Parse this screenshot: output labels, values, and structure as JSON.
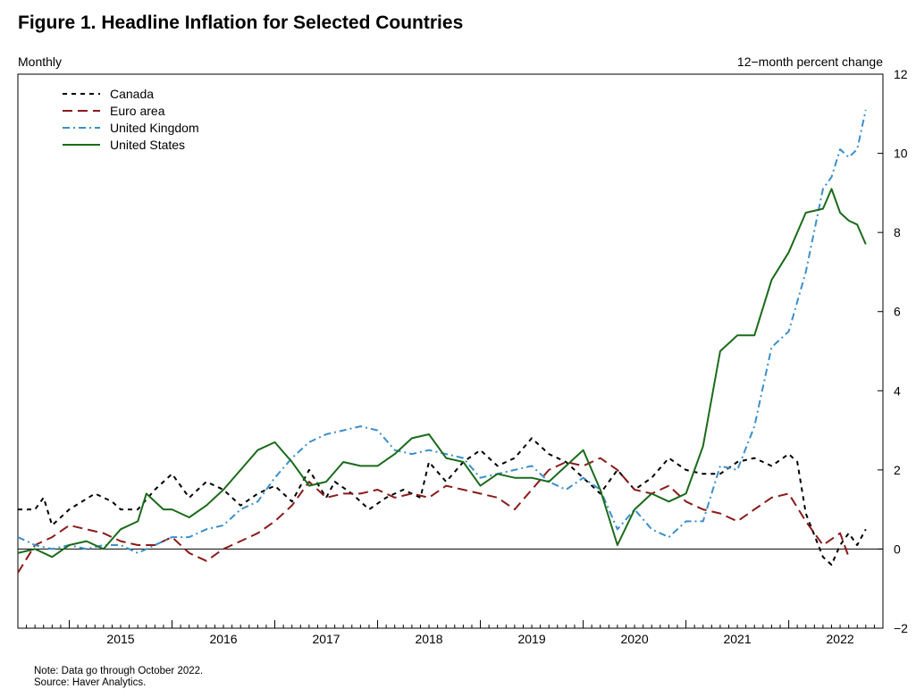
{
  "title": "Figure 1. Headline Inflation for Selected Countries",
  "left_caption": "Monthly",
  "right_caption": "12−month percent change",
  "notes": {
    "note": "Note: Data go through October 2022.",
    "source": "Source: Haver Analytics."
  },
  "chart_data": {
    "type": "line",
    "title": "Figure 1. Headline Inflation for Selected Countries",
    "frequency_label": "Monthly",
    "ylabel": "12−month percent change",
    "ylim": [
      -2,
      12
    ],
    "yticks": [
      -2,
      0,
      2,
      4,
      6,
      8,
      10,
      12
    ],
    "y_axis_side": "right",
    "xlim": [
      "2014-07",
      "2022-12"
    ],
    "x_tick_labels": [
      "2015",
      "2016",
      "2017",
      "2018",
      "2019",
      "2020",
      "2021",
      "2022"
    ],
    "zero_line": true,
    "grid": false,
    "legend_position": "top-left",
    "series": [
      {
        "name": "Canada",
        "color": "#000000",
        "style": "dashed",
        "points": [
          [
            "2014-07",
            1.0
          ],
          [
            "2014-09",
            1.0
          ],
          [
            "2014-10",
            1.3
          ],
          [
            "2014-11",
            0.6
          ],
          [
            "2015-01",
            1.0
          ],
          [
            "2015-04",
            1.4
          ],
          [
            "2015-06",
            1.2
          ],
          [
            "2015-07",
            1.0
          ],
          [
            "2015-09",
            1.0
          ],
          [
            "2015-11",
            1.5
          ],
          [
            "2016-01",
            1.9
          ],
          [
            "2016-03",
            1.3
          ],
          [
            "2016-05",
            1.7
          ],
          [
            "2016-07",
            1.5
          ],
          [
            "2016-09",
            1.1
          ],
          [
            "2016-11",
            1.4
          ],
          [
            "2017-01",
            1.6
          ],
          [
            "2017-03",
            1.2
          ],
          [
            "2017-05",
            2.0
          ],
          [
            "2017-07",
            1.3
          ],
          [
            "2017-08",
            1.7
          ],
          [
            "2017-10",
            1.4
          ],
          [
            "2017-12",
            1.0
          ],
          [
            "2018-02",
            1.3
          ],
          [
            "2018-04",
            1.5
          ],
          [
            "2018-06",
            1.3
          ],
          [
            "2018-07",
            2.2
          ],
          [
            "2018-09",
            1.7
          ],
          [
            "2018-11",
            2.2
          ],
          [
            "2019-01",
            2.5
          ],
          [
            "2019-03",
            2.1
          ],
          [
            "2019-05",
            2.3
          ],
          [
            "2019-07",
            2.8
          ],
          [
            "2019-09",
            2.4
          ],
          [
            "2019-11",
            2.2
          ],
          [
            "2020-01",
            1.8
          ],
          [
            "2020-03",
            1.4
          ],
          [
            "2020-05",
            2.0
          ],
          [
            "2020-07",
            1.5
          ],
          [
            "2020-09",
            1.8
          ],
          [
            "2020-11",
            2.3
          ],
          [
            "2021-01",
            2.0
          ],
          [
            "2021-03",
            1.9
          ],
          [
            "2021-05",
            1.9
          ],
          [
            "2021-07",
            2.2
          ],
          [
            "2021-09",
            2.3
          ],
          [
            "2021-11",
            2.1
          ],
          [
            "2022-01",
            2.4
          ],
          [
            "2022-02",
            2.2
          ],
          [
            "2022-03",
            0.9
          ],
          [
            "2022-05",
            -0.2
          ],
          [
            "2022-06",
            -0.4
          ],
          [
            "2022-07",
            0.1
          ],
          [
            "2022-08",
            0.4
          ],
          [
            "2022-09",
            0.1
          ],
          [
            "2022-10",
            0.5
          ]
        ]
      },
      {
        "name": "Euro area",
        "color": "#8b1a1a",
        "style": "long-dashed",
        "points": [
          [
            "2014-07",
            -0.6
          ],
          [
            "2014-09",
            0.1
          ],
          [
            "2014-11",
            0.3
          ],
          [
            "2015-01",
            0.6
          ],
          [
            "2015-03",
            0.5
          ],
          [
            "2015-05",
            0.4
          ],
          [
            "2015-07",
            0.2
          ],
          [
            "2015-09",
            0.1
          ],
          [
            "2015-11",
            0.1
          ],
          [
            "2016-01",
            0.3
          ],
          [
            "2016-03",
            -0.1
          ],
          [
            "2016-05",
            -0.3
          ],
          [
            "2016-07",
            0.0
          ],
          [
            "2016-09",
            0.2
          ],
          [
            "2016-11",
            0.4
          ],
          [
            "2017-01",
            0.7
          ],
          [
            "2017-03",
            1.1
          ],
          [
            "2017-05",
            1.7
          ],
          [
            "2017-07",
            1.3
          ],
          [
            "2017-09",
            1.4
          ],
          [
            "2017-11",
            1.4
          ],
          [
            "2018-01",
            1.5
          ],
          [
            "2018-03",
            1.3
          ],
          [
            "2018-05",
            1.4
          ],
          [
            "2018-07",
            1.3
          ],
          [
            "2018-09",
            1.6
          ],
          [
            "2018-11",
            1.5
          ],
          [
            "2019-01",
            1.4
          ],
          [
            "2019-03",
            1.3
          ],
          [
            "2019-05",
            1.0
          ],
          [
            "2019-07",
            1.5
          ],
          [
            "2019-09",
            2.0
          ],
          [
            "2019-11",
            2.2
          ],
          [
            "2020-01",
            2.1
          ],
          [
            "2020-03",
            2.3
          ],
          [
            "2020-05",
            2.0
          ],
          [
            "2020-07",
            1.5
          ],
          [
            "2020-09",
            1.4
          ],
          [
            "2020-11",
            1.6
          ],
          [
            "2021-01",
            1.2
          ],
          [
            "2021-03",
            1.0
          ],
          [
            "2021-05",
            0.9
          ],
          [
            "2021-07",
            0.7
          ],
          [
            "2021-09",
            1.0
          ],
          [
            "2021-11",
            1.3
          ],
          [
            "2022-01",
            1.4
          ],
          [
            "2022-03",
            0.7
          ],
          [
            "2022-05",
            0.1
          ],
          [
            "2022-07",
            0.4
          ],
          [
            "2022-08",
            -0.2
          ]
        ]
      },
      {
        "name": "United Kingdom",
        "color": "#3b8fc9",
        "style": "dash-dot",
        "points": [
          [
            "2014-07",
            0.3
          ],
          [
            "2014-09",
            0.1
          ],
          [
            "2014-11",
            0.0
          ],
          [
            "2015-01",
            0.1
          ],
          [
            "2015-03",
            0.0
          ],
          [
            "2015-05",
            0.1
          ],
          [
            "2015-07",
            0.1
          ],
          [
            "2015-09",
            -0.1
          ],
          [
            "2015-11",
            0.1
          ],
          [
            "2016-01",
            0.3
          ],
          [
            "2016-03",
            0.3
          ],
          [
            "2016-05",
            0.5
          ],
          [
            "2016-07",
            0.6
          ],
          [
            "2016-09",
            1.0
          ],
          [
            "2016-11",
            1.2
          ],
          [
            "2017-01",
            1.8
          ],
          [
            "2017-03",
            2.3
          ],
          [
            "2017-05",
            2.7
          ],
          [
            "2017-07",
            2.9
          ],
          [
            "2017-09",
            3.0
          ],
          [
            "2017-11",
            3.1
          ],
          [
            "2018-01",
            3.0
          ],
          [
            "2018-03",
            2.5
          ],
          [
            "2018-05",
            2.4
          ],
          [
            "2018-07",
            2.5
          ],
          [
            "2018-09",
            2.4
          ],
          [
            "2018-11",
            2.3
          ],
          [
            "2019-01",
            1.8
          ],
          [
            "2019-03",
            1.9
          ],
          [
            "2019-05",
            2.0
          ],
          [
            "2019-07",
            2.1
          ],
          [
            "2019-09",
            1.7
          ],
          [
            "2019-11",
            1.5
          ],
          [
            "2020-01",
            1.8
          ],
          [
            "2020-03",
            1.5
          ],
          [
            "2020-05",
            0.5
          ],
          [
            "2020-07",
            1.0
          ],
          [
            "2020-09",
            0.5
          ],
          [
            "2020-11",
            0.3
          ],
          [
            "2021-01",
            0.7
          ],
          [
            "2021-03",
            0.7
          ],
          [
            "2021-05",
            2.1
          ],
          [
            "2021-07",
            2.0
          ],
          [
            "2021-09",
            3.1
          ],
          [
            "2021-11",
            5.1
          ],
          [
            "2022-01",
            5.5
          ],
          [
            "2022-03",
            7.0
          ],
          [
            "2022-05",
            9.1
          ],
          [
            "2022-06",
            9.4
          ],
          [
            "2022-07",
            10.1
          ],
          [
            "2022-08",
            9.9
          ],
          [
            "2022-09",
            10.1
          ],
          [
            "2022-10",
            11.1
          ]
        ]
      },
      {
        "name": "United States",
        "color": "#1a6b1a",
        "style": "solid",
        "points": [
          [
            "2014-07",
            -0.1
          ],
          [
            "2014-09",
            0.0
          ],
          [
            "2014-11",
            -0.2
          ],
          [
            "2015-01",
            0.1
          ],
          [
            "2015-03",
            0.2
          ],
          [
            "2015-05",
            0.0
          ],
          [
            "2015-07",
            0.5
          ],
          [
            "2015-09",
            0.7
          ],
          [
            "2015-10",
            1.4
          ],
          [
            "2015-12",
            1.0
          ],
          [
            "2016-01",
            1.0
          ],
          [
            "2016-03",
            0.8
          ],
          [
            "2016-05",
            1.1
          ],
          [
            "2016-07",
            1.5
          ],
          [
            "2016-09",
            2.0
          ],
          [
            "2016-11",
            2.5
          ],
          [
            "2017-01",
            2.7
          ],
          [
            "2017-03",
            2.2
          ],
          [
            "2017-05",
            1.6
          ],
          [
            "2017-07",
            1.7
          ],
          [
            "2017-09",
            2.2
          ],
          [
            "2017-11",
            2.1
          ],
          [
            "2018-01",
            2.1
          ],
          [
            "2018-03",
            2.4
          ],
          [
            "2018-05",
            2.8
          ],
          [
            "2018-07",
            2.9
          ],
          [
            "2018-09",
            2.3
          ],
          [
            "2018-11",
            2.2
          ],
          [
            "2019-01",
            1.6
          ],
          [
            "2019-03",
            1.9
          ],
          [
            "2019-05",
            1.8
          ],
          [
            "2019-07",
            1.8
          ],
          [
            "2019-09",
            1.7
          ],
          [
            "2019-11",
            2.1
          ],
          [
            "2020-01",
            2.5
          ],
          [
            "2020-03",
            1.5
          ],
          [
            "2020-05",
            0.1
          ],
          [
            "2020-07",
            1.0
          ],
          [
            "2020-09",
            1.4
          ],
          [
            "2020-11",
            1.2
          ],
          [
            "2021-01",
            1.4
          ],
          [
            "2021-03",
            2.6
          ],
          [
            "2021-05",
            5.0
          ],
          [
            "2021-07",
            5.4
          ],
          [
            "2021-09",
            5.4
          ],
          [
            "2021-11",
            6.8
          ],
          [
            "2022-01",
            7.5
          ],
          [
            "2022-03",
            8.5
          ],
          [
            "2022-05",
            8.6
          ],
          [
            "2022-06",
            9.1
          ],
          [
            "2022-07",
            8.5
          ],
          [
            "2022-08",
            8.3
          ],
          [
            "2022-09",
            8.2
          ],
          [
            "2022-10",
            7.7
          ]
        ]
      }
    ]
  }
}
